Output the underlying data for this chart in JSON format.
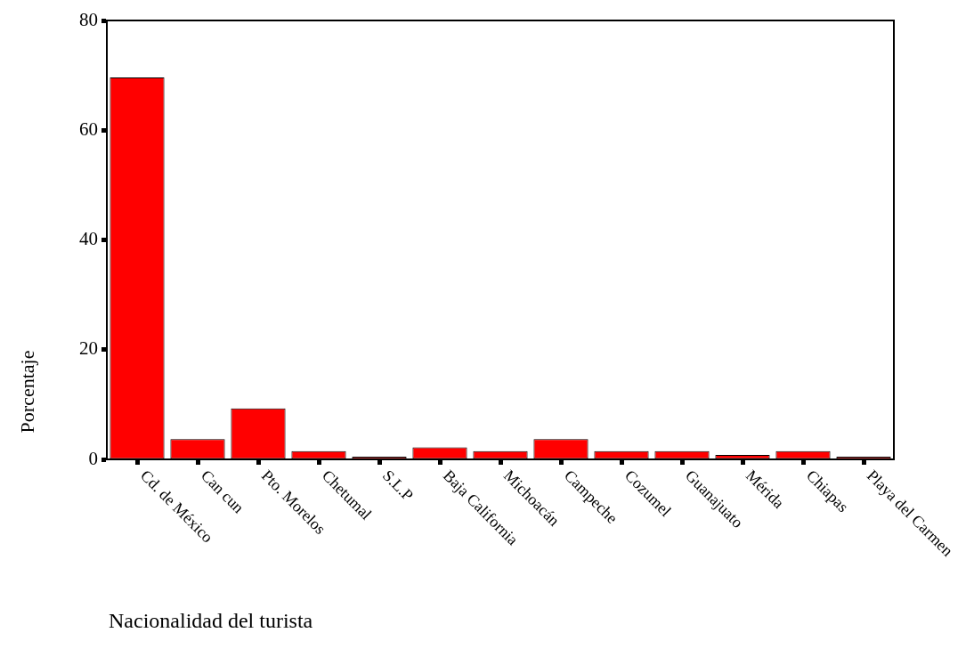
{
  "chart_data": {
    "type": "bar",
    "xlabel": "Nacionalidad del turista",
    "ylabel": "Porcentaje",
    "categories": [
      "Cd. de México",
      "Can cun",
      "Pto. Morelos",
      "Chetumal",
      "S.L.P",
      "Baja California",
      "Michoacán",
      "Campeche",
      "Cozumel",
      "Guanajuato",
      "Mérida",
      "Chiapas",
      "Playa del Carmen"
    ],
    "values": [
      69.6,
      3.7,
      9.3,
      1.5,
      0.5,
      2.2,
      1.5,
      3.7,
      1.5,
      1.5,
      0.8,
      1.5,
      0.5
    ],
    "color": "#ff0000",
    "ylim": [
      0,
      80
    ],
    "yticks": [
      0,
      20,
      40,
      60,
      80
    ],
    "grid": false,
    "legend": false
  }
}
